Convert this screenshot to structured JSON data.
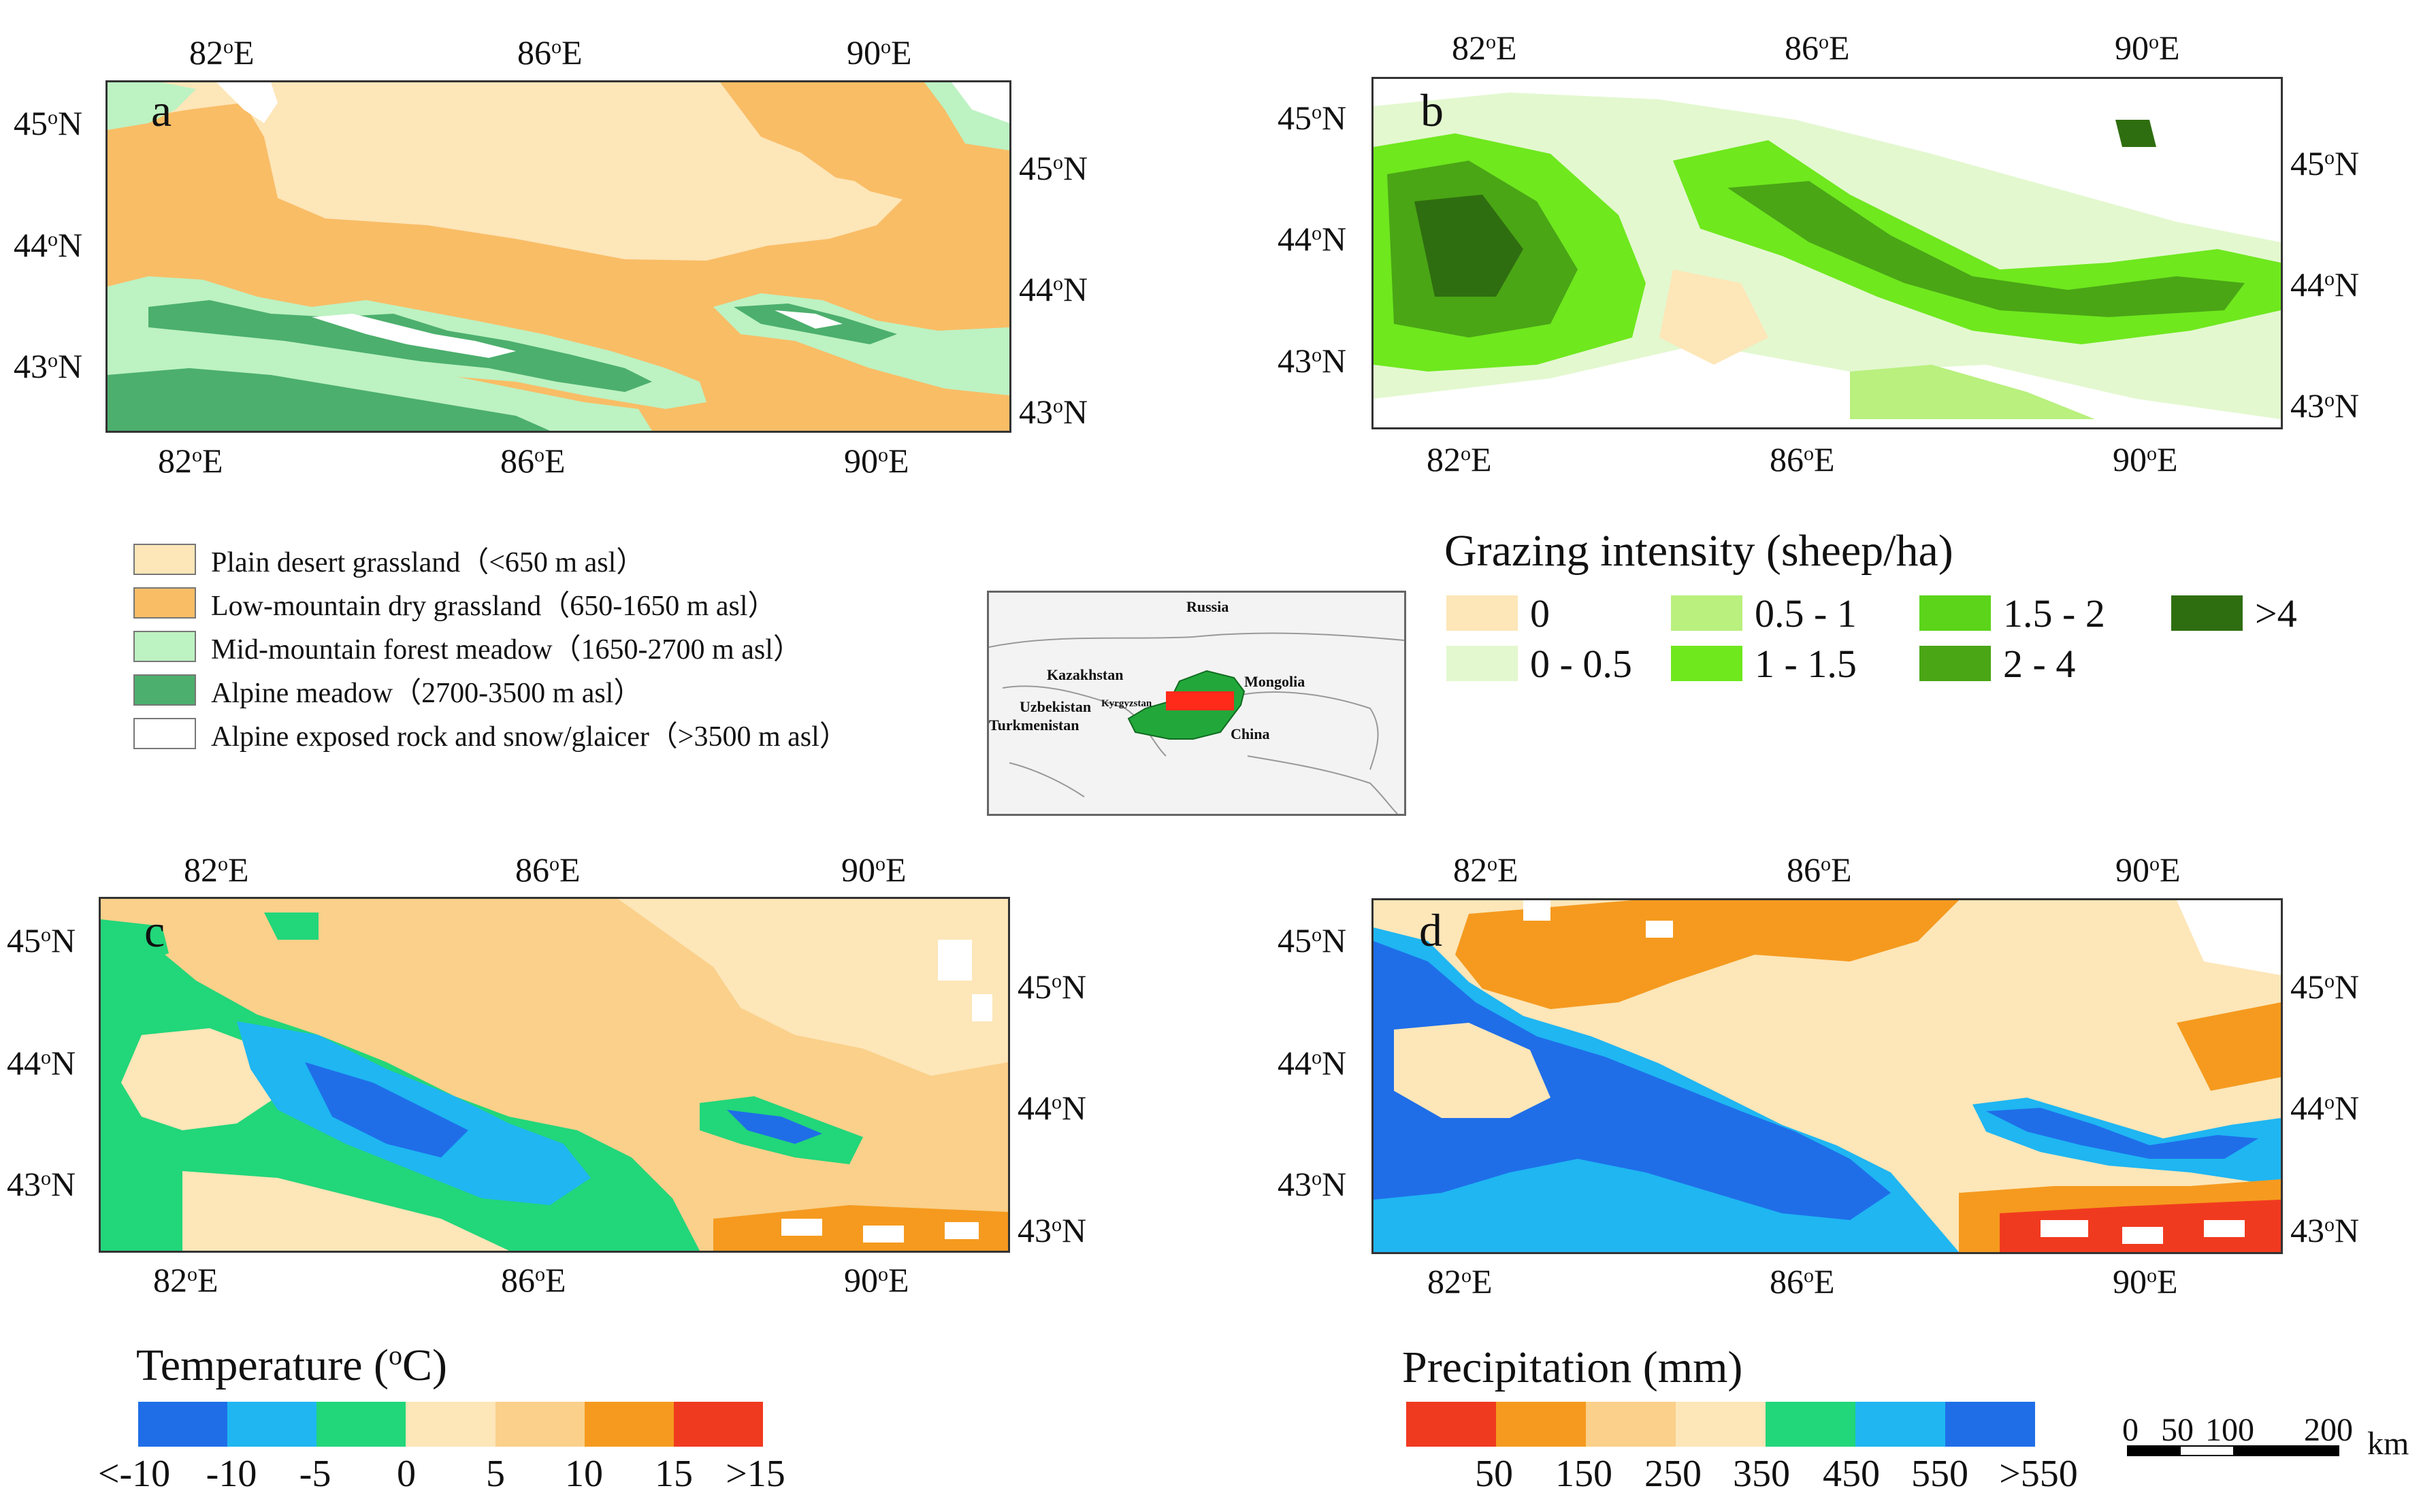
{
  "axes": {
    "lon_labels": [
      "82oE",
      "86oE",
      "90oE"
    ],
    "lat_labels": [
      "45oN",
      "44oN",
      "43oN"
    ]
  },
  "panels": {
    "a": {
      "letter": "a"
    },
    "b": {
      "letter": "b"
    },
    "c": {
      "letter": "c"
    },
    "d": {
      "letter": "d"
    }
  },
  "legend_a": {
    "items": [
      {
        "label": "Plain desert grassland（<650 m asl）",
        "color": "#fde6b8"
      },
      {
        "label": "Low-mountain dry grassland（650-1650 m asl）",
        "color": "#f9bd66"
      },
      {
        "label": "Mid-mountain forest meadow（1650-2700 m asl）",
        "color": "#bdf2c2"
      },
      {
        "label": "Alpine meadow（2700-3500 m asl）",
        "color": "#4caf6d"
      },
      {
        "label": "Alpine exposed rock and snow/glaicer（>3500 m asl）",
        "color": "#ffffff"
      }
    ]
  },
  "legend_b": {
    "title": "Grazing intensity (sheep/ha)",
    "items": [
      {
        "label": "0",
        "color": "#fde6b8"
      },
      {
        "label": "0 - 0.5",
        "color": "#e3f8cf"
      },
      {
        "label": "0.5 - 1",
        "color": "#b9f07e"
      },
      {
        "label": "1 - 1.5",
        "color": "#6fe81e"
      },
      {
        "label": "1.5 - 2",
        "color": "#5bd41a"
      },
      {
        "label": "2 - 4",
        "color": "#4aa615"
      },
      {
        "label": ">4",
        "color": "#2f6e10"
      }
    ]
  },
  "legend_c": {
    "title": "Temperature (oC)",
    "colors": [
      "#1f6ee8",
      "#1fb6f2",
      "#22d67a",
      "#fde6b8",
      "#fad08a",
      "#f59a1f",
      "#f03a1f"
    ],
    "labels": [
      "<-10",
      "-10",
      "-5",
      "0",
      "5",
      "10",
      "15",
      ">15"
    ]
  },
  "legend_d": {
    "title": "Precipitation (mm)",
    "colors": [
      "#f03a1f",
      "#f59a1f",
      "#fad08a",
      "#fde6b8",
      "#22d67a",
      "#1fb6f2",
      "#1f6ee8"
    ],
    "labels": [
      "50",
      "150",
      "250",
      "350",
      "450",
      "550",
      ">550"
    ]
  },
  "inset": {
    "labels": [
      "Russia",
      "Kazakhstan",
      "Mongolia",
      "Uzbekistan",
      "Kyrgyzstan",
      "Turkmenistan",
      "China"
    ],
    "region_color": "#22a83a",
    "study_area_color": "#ff2a1a"
  },
  "scale_bar": {
    "ticks": [
      "0",
      "50",
      "100",
      "200"
    ],
    "unit": "km"
  }
}
